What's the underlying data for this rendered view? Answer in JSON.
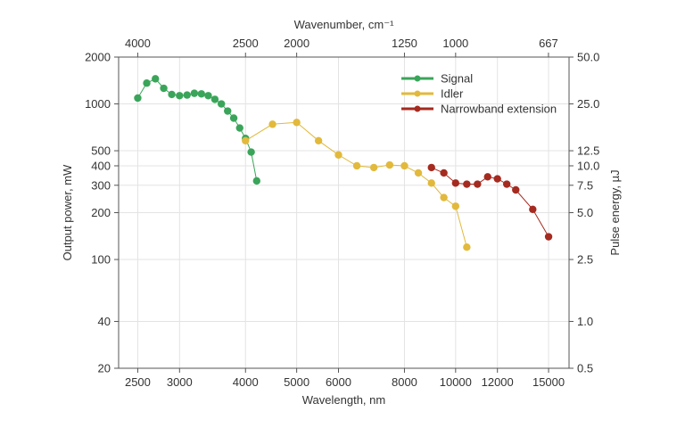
{
  "chart_data": {
    "type": "line",
    "xlabel": "Wavelength, nm",
    "x_scale": "log",
    "xlim": [
      2300,
      16400
    ],
    "x_ticks": [
      2500,
      3000,
      4000,
      5000,
      6000,
      8000,
      10000,
      12000,
      15000
    ],
    "x_tick_labels": [
      "2500",
      "3000",
      "4000",
      "5000",
      "6000",
      "8000",
      "10000",
      "12000",
      "15000"
    ],
    "top_axis": {
      "label": "Wavenumber, cm⁻¹",
      "ticks": [
        4000,
        2500,
        2000,
        1250,
        1000,
        667
      ],
      "tick_labels": [
        "4000",
        "2500",
        "2000",
        "1250",
        "1000",
        "667"
      ]
    },
    "ylabel": "Output power, mW",
    "y_scale": "log",
    "ylim": [
      20,
      2000
    ],
    "y_ticks": [
      20,
      40,
      100,
      200,
      300,
      400,
      500,
      1000,
      2000
    ],
    "y_tick_labels": [
      "20",
      "40",
      "100",
      "200",
      "300",
      "400",
      "500",
      "1000",
      "2000"
    ],
    "right_axis": {
      "label": "Pulse energy, µJ",
      "tick_labels": [
        "0.5",
        "1.0",
        "2.5",
        "5.0",
        "7.5",
        "10.0",
        "12.5",
        "25.0",
        "50.0"
      ]
    },
    "grid": true,
    "legend_position": "top-right",
    "series": [
      {
        "name": "Signal",
        "color": "#3aa55a",
        "x": [
          2500,
          2600,
          2700,
          2800,
          2900,
          3000,
          3100,
          3200,
          3300,
          3400,
          3500,
          3600,
          3700,
          3800,
          3900,
          4000,
          4100,
          4200
        ],
        "y": [
          1090,
          1360,
          1450,
          1260,
          1150,
          1130,
          1140,
          1170,
          1160,
          1130,
          1070,
          1000,
          900,
          810,
          700,
          600,
          490,
          320
        ]
      },
      {
        "name": "Idler",
        "color": "#e2b93b",
        "x": [
          4000,
          4500,
          5000,
          5500,
          6000,
          6500,
          7000,
          7500,
          8000,
          8500,
          9000,
          9500,
          10000,
          10500
        ],
        "y": [
          580,
          740,
          760,
          580,
          470,
          400,
          390,
          405,
          400,
          360,
          310,
          250,
          220,
          120
        ]
      },
      {
        "name": "Narrowband extension",
        "color": "#a52a1f",
        "x": [
          9000,
          9500,
          10000,
          10500,
          11000,
          11500,
          12000,
          12500,
          13000,
          14000,
          15000
        ],
        "y": [
          390,
          360,
          310,
          305,
          305,
          340,
          330,
          305,
          280,
          210,
          140
        ]
      }
    ]
  }
}
